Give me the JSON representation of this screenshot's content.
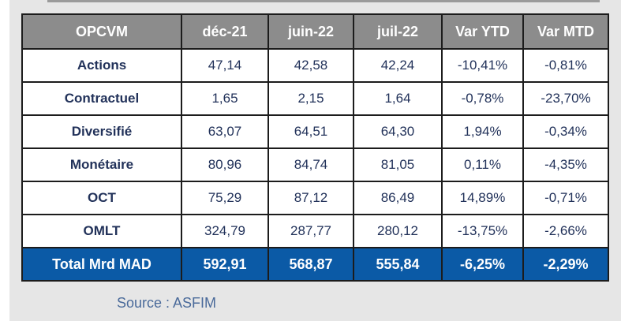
{
  "table": {
    "headers": [
      "OPCVM",
      "déc-21",
      "juin-22",
      "juil-22",
      "Var YTD",
      "Var MTD"
    ],
    "rows": [
      [
        "Actions",
        "47,14",
        "42,58",
        "42,24",
        "-10,41%",
        "-0,81%"
      ],
      [
        "Contractuel",
        "1,65",
        "2,15",
        "1,64",
        "-0,78%",
        "-23,70%"
      ],
      [
        "Diversifié",
        "63,07",
        "64,51",
        "64,30",
        "1,94%",
        "-0,34%"
      ],
      [
        "Monétaire",
        "80,96",
        "84,74",
        "81,05",
        "0,11%",
        "-4,35%"
      ],
      [
        "OCT",
        "75,29",
        "87,12",
        "86,49",
        "14,89%",
        "-0,71%"
      ],
      [
        "OMLT",
        "324,79",
        "287,77",
        "280,12",
        "-13,75%",
        "-2,66%"
      ]
    ],
    "total": [
      "Total Mrd MAD",
      "592,91",
      "568,87",
      "555,84",
      "-6,25%",
      "-2,29%"
    ]
  },
  "source": "Source : ASFIM",
  "colors": {
    "header_bg": "#8c8c8c",
    "total_bg": "#0b5aa6",
    "label_text": "#1c2a6b"
  }
}
